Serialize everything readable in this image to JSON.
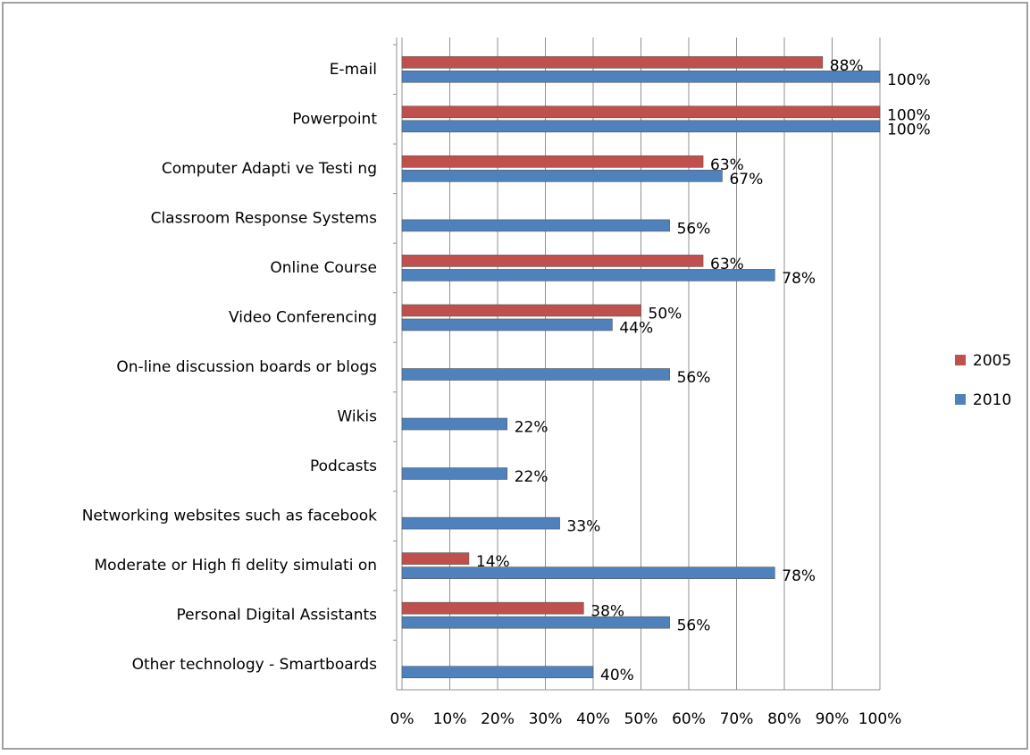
{
  "chart_data": {
    "type": "bar",
    "orientation": "horizontal",
    "categories": [
      "E-mail",
      "Powerpoint",
      "Computer Adapti ve Testi ng",
      "Classroom Response Systems",
      "Online Course",
      "Video Conferencing",
      "On-line discussion boards or blogs",
      "Wikis",
      "Podcasts",
      "Networking websites such as facebook",
      "Moderate or High fi delity simulati on",
      "Personal Digital Assistants",
      "Other technology - Smartboards"
    ],
    "series": [
      {
        "name": "2005",
        "color": "#c0504d",
        "values": [
          88,
          100,
          63,
          null,
          63,
          50,
          null,
          null,
          null,
          null,
          14,
          38,
          null
        ],
        "value_labels": [
          "88%",
          "100%",
          "63%",
          null,
          "63%",
          "50%",
          null,
          null,
          null,
          null,
          "14%",
          "38%",
          null
        ]
      },
      {
        "name": "2010",
        "color": "#4f81bd",
        "values": [
          100,
          100,
          67,
          56,
          78,
          44,
          56,
          22,
          22,
          33,
          78,
          56,
          40
        ],
        "value_labels": [
          "100%",
          "100%",
          "67%",
          "56%",
          "78%",
          "44%",
          "56%",
          "22%",
          "22%",
          "33%",
          "78%",
          "56%",
          "40%"
        ]
      }
    ],
    "xlim": [
      0,
      100
    ],
    "xticks": [
      {
        "value": 0,
        "label": "0%"
      },
      {
        "value": 10,
        "label": "10%"
      },
      {
        "value": 20,
        "label": "20%"
      },
      {
        "value": 30,
        "label": "30%"
      },
      {
        "value": 40,
        "label": "40%"
      },
      {
        "value": 50,
        "label": "50%"
      },
      {
        "value": 60,
        "label": "60%"
      },
      {
        "value": 70,
        "label": "70%"
      },
      {
        "value": 80,
        "label": "80%"
      },
      {
        "value": 90,
        "label": "90%"
      },
      {
        "value": 100,
        "label": "100%"
      }
    ],
    "grid": true,
    "legend": "right"
  }
}
